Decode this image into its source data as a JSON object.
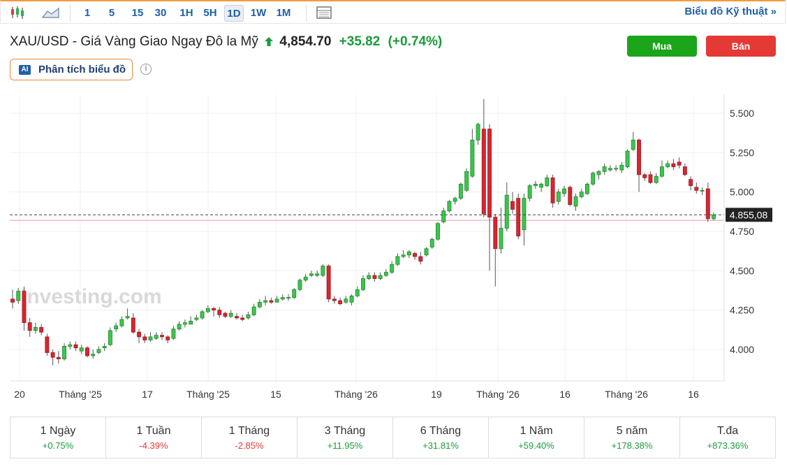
{
  "toolbar": {
    "timeframes": [
      "1",
      "5",
      "15",
      "30",
      "1H",
      "5H",
      "1D",
      "1W",
      "1M"
    ],
    "active": "1D",
    "tech_link": "Biểu đồ Kỹ thuật »"
  },
  "header": {
    "title": "XAU/USD - Giá Vàng Giao Ngay Đô la Mỹ",
    "price": "4,854.70",
    "change": "+35.82",
    "change_pct": "(+0.74%)",
    "up_color": "#1a9b3a"
  },
  "buttons": {
    "buy": "Mua",
    "sell": "Bán",
    "buy_color": "#1aa51a",
    "sell_color": "#e53935"
  },
  "ai": {
    "badge": "AI",
    "label": "Phân tích biểu đồ",
    "info": "i"
  },
  "chart_data": {
    "type": "candlestick",
    "watermark": "Investing.com",
    "ylim": [
      3800,
      5620
    ],
    "y_ticks": [
      "4.000",
      "4.250",
      "4.500",
      "4.750",
      "5.000",
      "5.250",
      "5.500"
    ],
    "x_ticks": [
      "20",
      "Tháng '25",
      "17",
      "Tháng '25",
      "15",
      "Tháng '26",
      "19",
      "Tháng '26",
      "16",
      "Tháng '26",
      "16"
    ],
    "last_price_label": "4.855,08",
    "last_price": 4855,
    "pink_line": 4820,
    "candles": [
      [
        4320,
        4300,
        4380,
        4260
      ],
      [
        4310,
        4370,
        4390,
        4290
      ],
      [
        4370,
        4170,
        4400,
        4120
      ],
      [
        4170,
        4120,
        4200,
        4080
      ],
      [
        4120,
        4140,
        4170,
        4100
      ],
      [
        4140,
        4110,
        4160,
        4090
      ],
      [
        4080,
        3980,
        4100,
        3960
      ],
      [
        3980,
        3950,
        4000,
        3900
      ],
      [
        3950,
        3940,
        3990,
        3910
      ],
      [
        3940,
        4020,
        4040,
        3930
      ],
      [
        4020,
        4030,
        4050,
        4000
      ],
      [
        4030,
        4010,
        4050,
        3990
      ],
      [
        3990,
        4010,
        4030,
        3970
      ],
      [
        4010,
        3960,
        4020,
        3950
      ],
      [
        3960,
        3970,
        4000,
        3940
      ],
      [
        3980,
        4000,
        4020,
        3970
      ],
      [
        4010,
        4020,
        4040,
        3990
      ],
      [
        4030,
        4120,
        4140,
        4020
      ],
      [
        4130,
        4150,
        4170,
        4110
      ],
      [
        4150,
        4190,
        4210,
        4140
      ],
      [
        4200,
        4210,
        4260,
        4190
      ],
      [
        4200,
        4110,
        4230,
        4100
      ],
      [
        4110,
        4080,
        4130,
        4040
      ],
      [
        4080,
        4060,
        4100,
        4040
      ],
      [
        4060,
        4080,
        4110,
        4050
      ],
      [
        4070,
        4090,
        4110,
        4060
      ],
      [
        4090,
        4080,
        4110,
        4060
      ],
      [
        4080,
        4060,
        4090,
        4040
      ],
      [
        4070,
        4130,
        4150,
        4060
      ],
      [
        4130,
        4160,
        4180,
        4120
      ],
      [
        4160,
        4170,
        4190,
        4140
      ],
      [
        4160,
        4180,
        4210,
        4160
      ],
      [
        4190,
        4200,
        4220,
        4180
      ],
      [
        4200,
        4240,
        4250,
        4190
      ],
      [
        4240,
        4260,
        4280,
        4230
      ],
      [
        4260,
        4250,
        4270,
        4210
      ],
      [
        4250,
        4220,
        4270,
        4200
      ],
      [
        4230,
        4210,
        4240,
        4200
      ],
      [
        4210,
        4230,
        4250,
        4200
      ],
      [
        4210,
        4200,
        4230,
        4190
      ],
      [
        4200,
        4190,
        4220,
        4180
      ],
      [
        4200,
        4220,
        4240,
        4190
      ],
      [
        4220,
        4270,
        4290,
        4210
      ],
      [
        4270,
        4300,
        4320,
        4260
      ],
      [
        4300,
        4310,
        4340,
        4280
      ],
      [
        4310,
        4300,
        4330,
        4290
      ],
      [
        4300,
        4320,
        4340,
        4300
      ],
      [
        4320,
        4330,
        4350,
        4310
      ],
      [
        4330,
        4330,
        4350,
        4310
      ],
      [
        4330,
        4380,
        4390,
        4320
      ],
      [
        4380,
        4440,
        4450,
        4370
      ],
      [
        4440,
        4460,
        4480,
        4430
      ],
      [
        4470,
        4480,
        4500,
        4460
      ],
      [
        4470,
        4480,
        4500,
        4460
      ],
      [
        4470,
        4530,
        4540,
        4460
      ],
      [
        4530,
        4320,
        4540,
        4300
      ],
      [
        4320,
        4310,
        4340,
        4290
      ],
      [
        4310,
        4290,
        4330,
        4280
      ],
      [
        4300,
        4320,
        4340,
        4290
      ],
      [
        4300,
        4340,
        4350,
        4280
      ],
      [
        4340,
        4380,
        4400,
        4330
      ],
      [
        4380,
        4450,
        4470,
        4370
      ],
      [
        4450,
        4470,
        4490,
        4440
      ],
      [
        4470,
        4450,
        4490,
        4430
      ],
      [
        4450,
        4470,
        4490,
        4440
      ],
      [
        4470,
        4490,
        4510,
        4460
      ],
      [
        4490,
        4540,
        4560,
        4480
      ],
      [
        4540,
        4590,
        4610,
        4530
      ],
      [
        4590,
        4600,
        4630,
        4580
      ],
      [
        4600,
        4620,
        4630,
        4580
      ],
      [
        4610,
        4590,
        4620,
        4570
      ],
      [
        4590,
        4560,
        4620,
        4540
      ],
      [
        4600,
        4640,
        4650,
        4590
      ],
      [
        4650,
        4700,
        4710,
        4640
      ],
      [
        4700,
        4800,
        4810,
        4690
      ],
      [
        4810,
        4880,
        4900,
        4800
      ],
      [
        4880,
        4940,
        4950,
        4870
      ],
      [
        4940,
        4960,
        4970,
        4920
      ],
      [
        4960,
        5050,
        5060,
        4950
      ],
      [
        5010,
        5130,
        5150,
        5000
      ],
      [
        5100,
        5330,
        5400,
        5090
      ],
      [
        5330,
        5430,
        5440,
        5300
      ],
      [
        5400,
        4860,
        5590,
        4840
      ],
      [
        5400,
        4840,
        5430,
        4500
      ],
      [
        4840,
        4640,
        4860,
        4400
      ],
      [
        4640,
        4770,
        4900,
        4610
      ],
      [
        4770,
        4980,
        5060,
        4750
      ],
      [
        4940,
        4890,
        5000,
        4860
      ],
      [
        4960,
        4720,
        4990,
        4700
      ],
      [
        4760,
        4960,
        4990,
        4660
      ],
      [
        4960,
        5040,
        5050,
        4940
      ],
      [
        5040,
        5050,
        5070,
        5020
      ],
      [
        5030,
        5050,
        5060,
        5000
      ],
      [
        5040,
        5090,
        5110,
        5030
      ],
      [
        5090,
        4930,
        5110,
        4900
      ],
      [
        4940,
        5000,
        5020,
        4920
      ],
      [
        4990,
        5020,
        5040,
        4970
      ],
      [
        5030,
        4920,
        5040,
        4910
      ],
      [
        4910,
        4970,
        4990,
        4880
      ],
      [
        4970,
        5000,
        5020,
        4960
      ],
      [
        4990,
        5050,
        5060,
        4980
      ],
      [
        5050,
        5120,
        5130,
        5040
      ],
      [
        5110,
        5130,
        5140,
        5080
      ],
      [
        5130,
        5160,
        5180,
        5110
      ],
      [
        5140,
        5150,
        5170,
        5130
      ],
      [
        5150,
        5150,
        5170,
        5130
      ],
      [
        5140,
        5170,
        5190,
        5120
      ],
      [
        5160,
        5260,
        5270,
        5150
      ],
      [
        5270,
        5330,
        5380,
        5260
      ],
      [
        5330,
        5110,
        5340,
        5000
      ],
      [
        5110,
        5090,
        5120,
        5070
      ],
      [
        5110,
        5060,
        5130,
        5050
      ],
      [
        5060,
        5100,
        5120,
        5050
      ],
      [
        5100,
        5160,
        5200,
        5090
      ],
      [
        5160,
        5180,
        5200,
        5150
      ],
      [
        5180,
        5160,
        5210,
        5140
      ],
      [
        5190,
        5170,
        5220,
        5150
      ],
      [
        5160,
        5110,
        5180,
        5100
      ],
      [
        5080,
        5040,
        5100,
        5010
      ],
      [
        5030,
        5010,
        5060,
        4990
      ],
      [
        5010,
        5010,
        5030,
        4980
      ],
      [
        5020,
        4830,
        5060,
        4810
      ],
      [
        4830,
        4855,
        4870,
        4820
      ]
    ]
  },
  "performance": [
    {
      "label": "1 Ngày",
      "value": "+0.75%",
      "up": true
    },
    {
      "label": "1 Tuần",
      "value": "-4.39%",
      "up": false
    },
    {
      "label": "1 Tháng",
      "value": "-2.85%",
      "up": false
    },
    {
      "label": "3 Tháng",
      "value": "+11.95%",
      "up": true
    },
    {
      "label": "6 Tháng",
      "value": "+31.81%",
      "up": true
    },
    {
      "label": "1 Năm",
      "value": "+59.40%",
      "up": true
    },
    {
      "label": "5 năm",
      "value": "+178.38%",
      "up": true
    },
    {
      "label": "T.đa",
      "value": "+873.36%",
      "up": true
    }
  ]
}
